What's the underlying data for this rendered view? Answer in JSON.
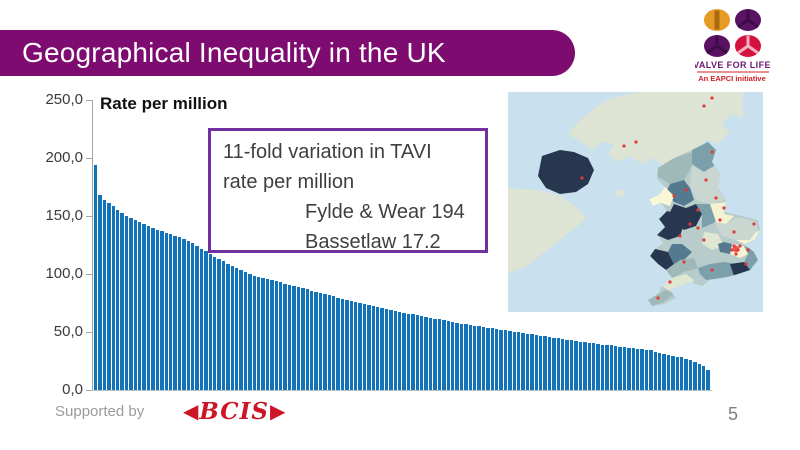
{
  "slide": {
    "title": "Geographical Inequality in the UK",
    "page_number": "5",
    "footer": {
      "supported_by": "Supported by",
      "bcis_text": "BCIS"
    },
    "colors": {
      "title_bar": "#7d0b70",
      "accent_purple": "#7030a0",
      "bcis_red": "#cc1626"
    }
  },
  "logo": {
    "line1": "VALVE FOR LIFE",
    "line2": "An EAPCI initiative",
    "colors": {
      "gold": "#e79b27",
      "gold_dark": "#a8690f",
      "purple": "#5a1263",
      "purple_dark": "#3d0b46",
      "crimson": "#d5123f",
      "crimson_light": "#f3b3c0",
      "text_purple": "#6a1a70",
      "text_red": "#cc2027"
    }
  },
  "annotation": {
    "line1": "11-fold variation in TAVI",
    "line2": "rate per million",
    "max_label": "Fylde & Wear 194",
    "min_label": "Bassetlaw 17.2",
    "border_color": "#7030a0"
  },
  "chart_data": {
    "type": "bar",
    "title": "Rate per million",
    "xlabel": "",
    "ylabel": "",
    "ylim": [
      0,
      250
    ],
    "grid": false,
    "legend": false,
    "ytick_labels": [
      "250,0",
      "200,0",
      "150,0",
      "100,0",
      "50,0",
      "0,0"
    ],
    "bar_color": "#1373b8",
    "max_region": {
      "name": "Fylde & Wear",
      "value": 194
    },
    "min_region": {
      "name": "Bassetlaw",
      "value": 17.2
    },
    "values": [
      194,
      168,
      164,
      161.2,
      158.4,
      155.6,
      152.8,
      149.8,
      148.1,
      146.4,
      144.7,
      142.9,
      141.2,
      139.5,
      137.9,
      136.7,
      135.4,
      134.1,
      132.8,
      131.5,
      130.2,
      128.8,
      126.5,
      124.2,
      121.9,
      119.6,
      117.3,
      115,
      112.7,
      110.8,
      108.9,
      107.1,
      105.2,
      103.3,
      101.5,
      99.6,
      98.6,
      97.6,
      96.6,
      95.6,
      94.6,
      93.6,
      92.7,
      91.7,
      90.7,
      89.7,
      88.7,
      87.7,
      86.7,
      85.7,
      84.7,
      83.7,
      82.7,
      81.7,
      80.7,
      79.7,
      78.8,
      77.9,
      77,
      76.2,
      75.3,
      74.4,
      73.6,
      72.6,
      71.8,
      70.9,
      70,
      69.2,
      68.3,
      67.4,
      66.6,
      65.8,
      65.1,
      64.4,
      63.7,
      63,
      62.2,
      61.6,
      60.9,
      60.2,
      59.4,
      58.7,
      58,
      57.3,
      56.6,
      56,
      55.4,
      54.8,
      54.3,
      53.7,
      53.1,
      52.6,
      52.1,
      51.5,
      50.9,
      50.3,
      49.7,
      49.2,
      48.6,
      48,
      47.4,
      46.8,
      46.3,
      45.7,
      45.1,
      44.6,
      44,
      43.4,
      42.8,
      42.3,
      41.7,
      41.1,
      40.5,
      40.1,
      39.7,
      39.2,
      38.8,
      38.4,
      38,
      37.5,
      37,
      36.5,
      36.1,
      35.6,
      35.1,
      34.6,
      34.1,
      33.2,
      32.2,
      31.3,
      30.3,
      29.5,
      28.8,
      28.1,
      26.7,
      25.8,
      24.1,
      22.3,
      20.3,
      17.2
    ]
  },
  "map": {
    "sea": "#c9e0ee",
    "excluded": "#dde4d3",
    "base": "#b7cccb",
    "marker": "#e23a3a",
    "palette": [
      "#f6f3d3",
      "#faf7d8",
      "#dfe7d2",
      "#c9d7d0",
      "#9fb9b9",
      "#7ba0ac",
      "#547a90",
      "#26374f"
    ]
  }
}
